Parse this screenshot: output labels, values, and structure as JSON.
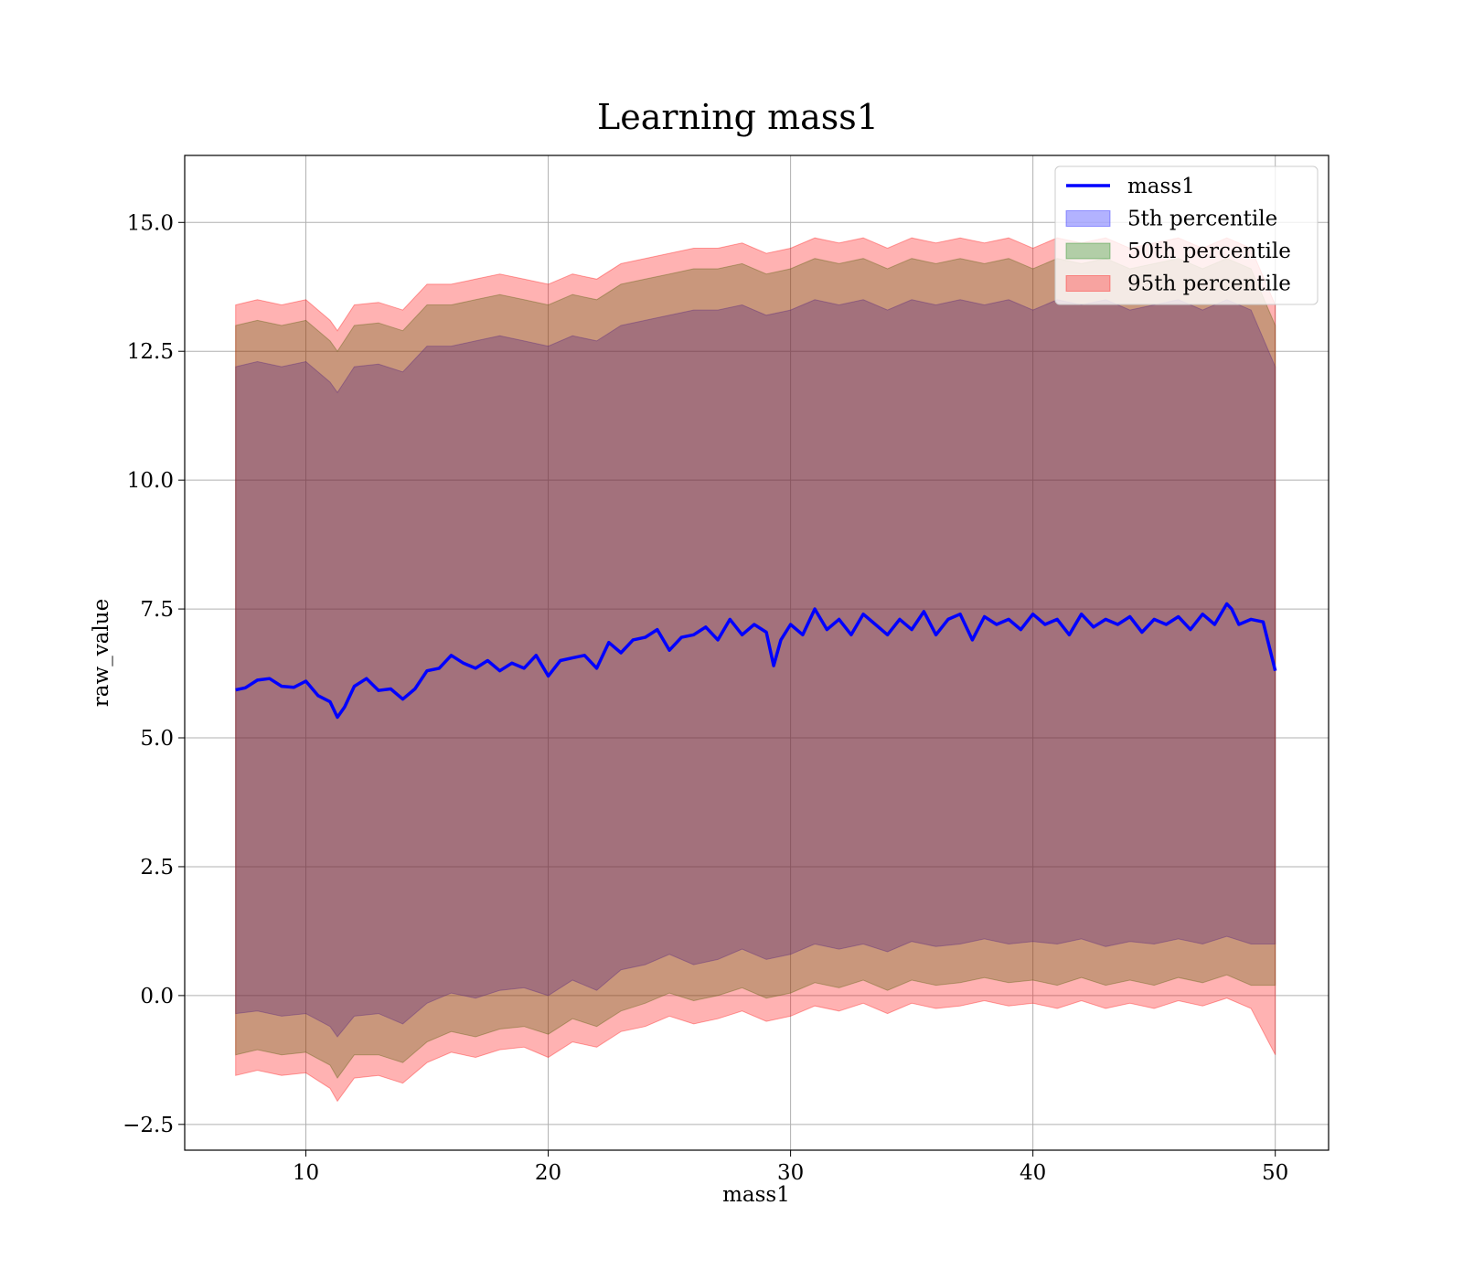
{
  "chart_data": {
    "type": "line",
    "title": "Learning mass1",
    "xlabel": "mass1",
    "ylabel": "raw_value",
    "xlim": [
      5,
      52.2
    ],
    "ylim": [
      -3.0,
      16.3
    ],
    "x_ticks": [
      10,
      20,
      30,
      40,
      50
    ],
    "x_tick_labels": [
      "10",
      "20",
      "30",
      "40",
      "50"
    ],
    "y_ticks": [
      -2.5,
      0.0,
      2.5,
      5.0,
      7.5,
      10.0,
      12.5,
      15.0
    ],
    "y_tick_labels": [
      "−2.5",
      "0.0",
      "2.5",
      "5.0",
      "7.5",
      "10.0",
      "12.5",
      "15.0"
    ],
    "grid": true,
    "legend_position": "top-right",
    "series": [
      {
        "name": "mass1",
        "kind": "line",
        "color": "#0000ff",
        "x": [
          7.1,
          7.5,
          8.0,
          8.5,
          9.0,
          9.5,
          10.0,
          10.5,
          11.0,
          11.3,
          11.6,
          12.0,
          12.5,
          13.0,
          13.5,
          14.0,
          14.5,
          15.0,
          15.5,
          16.0,
          16.5,
          17.0,
          17.5,
          18.0,
          18.5,
          19.0,
          19.5,
          20.0,
          20.5,
          21.0,
          21.5,
          22.0,
          22.5,
          23.0,
          23.5,
          24.0,
          24.5,
          25.0,
          25.5,
          26.0,
          26.5,
          27.0,
          27.5,
          28.0,
          28.5,
          29.0,
          29.3,
          29.6,
          30.0,
          30.5,
          31.0,
          31.5,
          32.0,
          32.5,
          33.0,
          33.5,
          34.0,
          34.5,
          35.0,
          35.5,
          36.0,
          36.5,
          37.0,
          37.5,
          38.0,
          38.5,
          39.0,
          39.5,
          40.0,
          40.5,
          41.0,
          41.5,
          42.0,
          42.5,
          43.0,
          43.5,
          44.0,
          44.5,
          45.0,
          45.5,
          46.0,
          46.5,
          47.0,
          47.5,
          48.0,
          48.2,
          48.5,
          49.0,
          49.5,
          50.0
        ],
        "y": [
          5.93,
          5.97,
          6.12,
          6.15,
          6.0,
          5.98,
          6.1,
          5.82,
          5.7,
          5.4,
          5.6,
          6.0,
          6.15,
          5.92,
          5.95,
          5.75,
          5.95,
          6.3,
          6.35,
          6.6,
          6.45,
          6.35,
          6.5,
          6.3,
          6.45,
          6.35,
          6.6,
          6.2,
          6.5,
          6.55,
          6.6,
          6.35,
          6.85,
          6.65,
          6.9,
          6.95,
          7.1,
          6.7,
          6.95,
          7.0,
          7.15,
          6.9,
          7.3,
          7.0,
          7.2,
          7.05,
          6.4,
          6.9,
          7.2,
          7.0,
          7.5,
          7.1,
          7.3,
          7.0,
          7.4,
          7.2,
          7.0,
          7.3,
          7.1,
          7.45,
          7.0,
          7.3,
          7.4,
          6.9,
          7.35,
          7.2,
          7.3,
          7.1,
          7.4,
          7.2,
          7.3,
          7.0,
          7.4,
          7.15,
          7.3,
          7.2,
          7.35,
          7.05,
          7.3,
          7.2,
          7.35,
          7.1,
          7.4,
          7.2,
          7.6,
          7.5,
          7.2,
          7.3,
          7.25,
          6.3
        ]
      },
      {
        "name": "5th percentile",
        "kind": "band",
        "color": "#0000ff",
        "x": [
          7.1,
          8.0,
          9.0,
          10.0,
          11.0,
          11.3,
          12.0,
          13.0,
          14.0,
          15.0,
          16.0,
          17.0,
          18.0,
          19.0,
          20.0,
          21.0,
          22.0,
          23.0,
          24.0,
          25.0,
          26.0,
          27.0,
          28.0,
          29.0,
          30.0,
          31.0,
          32.0,
          33.0,
          34.0,
          35.0,
          36.0,
          37.0,
          38.0,
          39.0,
          40.0,
          41.0,
          42.0,
          43.0,
          44.0,
          45.0,
          46.0,
          47.0,
          48.0,
          49.0,
          50.0
        ],
        "lower": [
          -0.35,
          -0.3,
          -0.4,
          -0.35,
          -0.6,
          -0.8,
          -0.4,
          -0.35,
          -0.55,
          -0.15,
          0.05,
          -0.05,
          0.1,
          0.15,
          0.0,
          0.3,
          0.1,
          0.5,
          0.6,
          0.8,
          0.6,
          0.7,
          0.9,
          0.7,
          0.8,
          1.0,
          0.9,
          1.0,
          0.85,
          1.05,
          0.95,
          1.0,
          1.1,
          1.0,
          1.05,
          1.0,
          1.1,
          0.95,
          1.05,
          1.0,
          1.1,
          1.0,
          1.15,
          1.0,
          1.0
        ],
        "upper": [
          12.2,
          12.3,
          12.2,
          12.3,
          11.9,
          11.7,
          12.2,
          12.25,
          12.1,
          12.6,
          12.6,
          12.7,
          12.8,
          12.7,
          12.6,
          12.8,
          12.7,
          13.0,
          13.1,
          13.2,
          13.3,
          13.3,
          13.4,
          13.2,
          13.3,
          13.5,
          13.4,
          13.5,
          13.3,
          13.5,
          13.4,
          13.5,
          13.4,
          13.5,
          13.3,
          13.5,
          13.4,
          13.5,
          13.3,
          13.4,
          13.5,
          13.3,
          13.5,
          13.3,
          12.2
        ]
      },
      {
        "name": "50th percentile",
        "kind": "band",
        "color": "#008000",
        "x": [
          7.1,
          8.0,
          9.0,
          10.0,
          11.0,
          11.3,
          12.0,
          13.0,
          14.0,
          15.0,
          16.0,
          17.0,
          18.0,
          19.0,
          20.0,
          21.0,
          22.0,
          23.0,
          24.0,
          25.0,
          26.0,
          27.0,
          28.0,
          29.0,
          30.0,
          31.0,
          32.0,
          33.0,
          34.0,
          35.0,
          36.0,
          37.0,
          38.0,
          39.0,
          40.0,
          41.0,
          42.0,
          43.0,
          44.0,
          45.0,
          46.0,
          47.0,
          48.0,
          49.0,
          50.0
        ],
        "lower": [
          -1.15,
          -1.05,
          -1.15,
          -1.1,
          -1.35,
          -1.6,
          -1.15,
          -1.15,
          -1.3,
          -0.9,
          -0.7,
          -0.8,
          -0.65,
          -0.6,
          -0.75,
          -0.45,
          -0.6,
          -0.3,
          -0.15,
          0.05,
          -0.1,
          0.0,
          0.15,
          -0.05,
          0.05,
          0.25,
          0.15,
          0.3,
          0.1,
          0.3,
          0.2,
          0.25,
          0.35,
          0.25,
          0.3,
          0.2,
          0.35,
          0.2,
          0.3,
          0.2,
          0.35,
          0.25,
          0.4,
          0.2,
          0.2
        ],
        "upper": [
          13.0,
          13.1,
          13.0,
          13.1,
          12.7,
          12.5,
          13.0,
          13.05,
          12.9,
          13.4,
          13.4,
          13.5,
          13.6,
          13.5,
          13.4,
          13.6,
          13.5,
          13.8,
          13.9,
          14.0,
          14.1,
          14.1,
          14.2,
          14.0,
          14.1,
          14.3,
          14.2,
          14.3,
          14.1,
          14.3,
          14.2,
          14.3,
          14.2,
          14.3,
          14.1,
          14.3,
          14.2,
          14.3,
          14.1,
          14.2,
          14.3,
          14.1,
          14.3,
          14.1,
          13.0
        ]
      },
      {
        "name": "95th percentile",
        "kind": "band",
        "color": "#ff0000",
        "x": [
          7.1,
          8.0,
          9.0,
          10.0,
          11.0,
          11.3,
          12.0,
          13.0,
          14.0,
          15.0,
          16.0,
          17.0,
          18.0,
          19.0,
          20.0,
          21.0,
          22.0,
          23.0,
          24.0,
          25.0,
          26.0,
          27.0,
          28.0,
          29.0,
          30.0,
          31.0,
          32.0,
          33.0,
          34.0,
          35.0,
          36.0,
          37.0,
          38.0,
          39.0,
          40.0,
          41.0,
          42.0,
          43.0,
          44.0,
          45.0,
          46.0,
          47.0,
          48.0,
          49.0,
          50.0
        ],
        "lower": [
          -1.55,
          -1.45,
          -1.55,
          -1.5,
          -1.8,
          -2.05,
          -1.6,
          -1.55,
          -1.7,
          -1.3,
          -1.1,
          -1.2,
          -1.05,
          -1.0,
          -1.2,
          -0.9,
          -1.0,
          -0.7,
          -0.6,
          -0.4,
          -0.55,
          -0.45,
          -0.3,
          -0.5,
          -0.4,
          -0.2,
          -0.3,
          -0.15,
          -0.35,
          -0.15,
          -0.25,
          -0.2,
          -0.1,
          -0.2,
          -0.15,
          -0.25,
          -0.1,
          -0.25,
          -0.15,
          -0.25,
          -0.1,
          -0.2,
          -0.05,
          -0.25,
          -1.15
        ],
        "upper": [
          13.4,
          13.5,
          13.4,
          13.5,
          13.1,
          12.9,
          13.4,
          13.45,
          13.3,
          13.8,
          13.8,
          13.9,
          14.0,
          13.9,
          13.8,
          14.0,
          13.9,
          14.2,
          14.3,
          14.4,
          14.5,
          14.5,
          14.6,
          14.4,
          14.5,
          14.7,
          14.6,
          14.7,
          14.5,
          14.7,
          14.6,
          14.7,
          14.6,
          14.7,
          14.5,
          14.7,
          14.6,
          14.7,
          14.5,
          14.6,
          14.7,
          14.5,
          14.7,
          14.5,
          13.4
        ]
      }
    ]
  }
}
